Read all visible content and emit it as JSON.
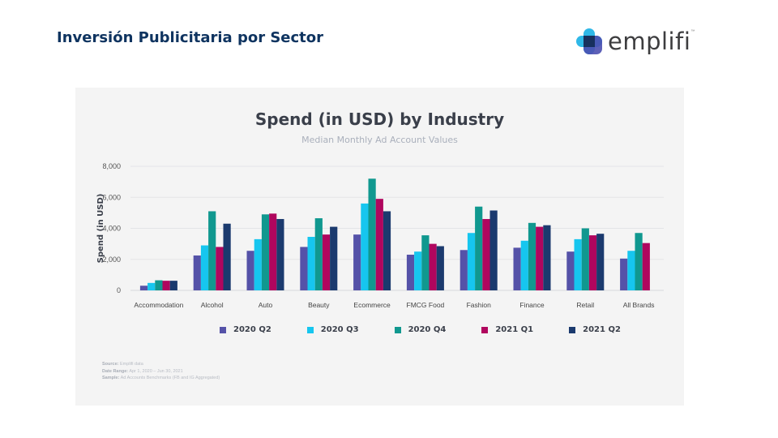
{
  "slide": {
    "title": "Inversión Publicitaria por Sector",
    "logo_text": "emplifi",
    "logo_tm": "™"
  },
  "notes": {
    "source_label": "Source:",
    "source_value": " Emplifi data",
    "date_label": "Date Range:",
    "date_value": " Apr 1, 2020 – Jun 30, 2021",
    "sample_label": "Sample:",
    "sample_value": " Ad Accounts Benchmarks (FB and IG Aggregated)"
  },
  "chart_data": {
    "type": "bar",
    "title": "Spend (in USD) by Industry",
    "subtitle": "Median Monthly Ad Account Values",
    "xlabel": "",
    "ylabel": "Spend (in USD)",
    "ylim": [
      0,
      8000
    ],
    "yticks": [
      0,
      2000,
      4000,
      6000,
      8000
    ],
    "ytick_labels": [
      "0",
      "2,000",
      "4,000",
      "6,000",
      "8,000"
    ],
    "grid": true,
    "legend_position": "bottom",
    "categories": [
      "Accommodation",
      "Alcohol",
      "Auto",
      "Beauty",
      "Ecommerce",
      "FMCG Food",
      "Fashion",
      "Finance",
      "Retail",
      "All Brands"
    ],
    "series": [
      {
        "name": "2020 Q2",
        "color": "#5552a8",
        "values": [
          300,
          2250,
          2550,
          2800,
          3600,
          2300,
          2600,
          2750,
          2500,
          2050
        ]
      },
      {
        "name": "2020 Q3",
        "color": "#16c6ef",
        "values": [
          480,
          2900,
          3300,
          3450,
          5600,
          2500,
          3700,
          3200,
          3300,
          2550
        ]
      },
      {
        "name": "2020 Q4",
        "color": "#10988f",
        "values": [
          650,
          5100,
          4900,
          4650,
          7200,
          3550,
          5400,
          4350,
          4000,
          3700
        ]
      },
      {
        "name": "2021 Q1",
        "color": "#b0065e",
        "values": [
          620,
          2800,
          4950,
          3600,
          5900,
          3000,
          4600,
          4100,
          3550,
          3050
        ]
      },
      {
        "name": "2021 Q2",
        "color": "#1b3a6e",
        "values": [
          620,
          4300,
          4600,
          4100,
          5100,
          2850,
          5150,
          4200,
          3650,
          null
        ]
      }
    ]
  }
}
